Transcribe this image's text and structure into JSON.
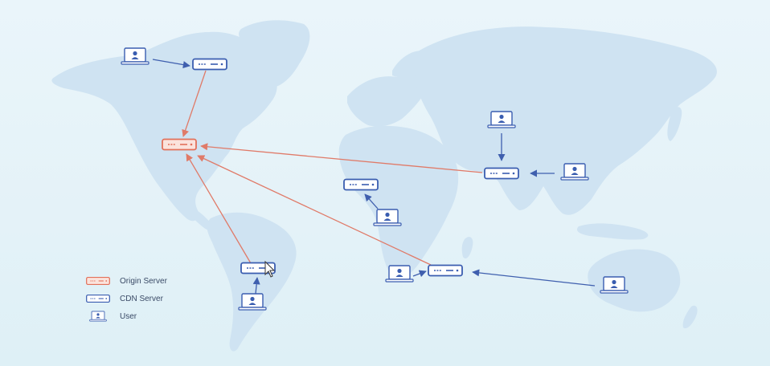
{
  "legend": {
    "origin_label": "Origin Server",
    "cdn_label": "CDN Server",
    "user_label": "User"
  },
  "colors": {
    "background": "#e6f3f9",
    "land": "#cfe3f2",
    "origin": "#e2705a",
    "origin_fill": "#fbe3dc",
    "cdn": "#3a5db0",
    "cdn_fill": "#ffffff",
    "user": "#3a5db0",
    "arrow_blue": "#3f5fae",
    "arrow_red": "#e07a68"
  },
  "icons": {
    "origin": "origin-server-icon",
    "cdn": "cdn-server-icon",
    "user": "laptop-user-icon"
  }
}
